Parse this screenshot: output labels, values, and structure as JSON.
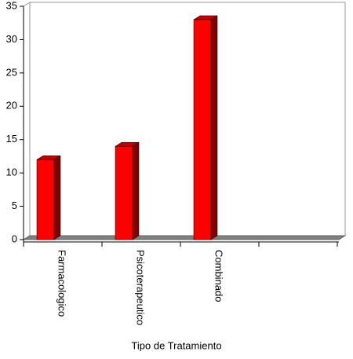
{
  "chart_data": {
    "type": "bar",
    "categories": [
      "Farmacologico",
      "Psicoterapeutico",
      "Combinado",
      null
    ],
    "values": [
      12,
      14,
      33,
      null
    ],
    "color": "#ff0000",
    "ylim": [
      0,
      35
    ],
    "yticks": [
      0,
      5,
      10,
      15,
      20,
      25,
      30,
      35
    ],
    "x_label": "Tipo de Tratamiento"
  }
}
